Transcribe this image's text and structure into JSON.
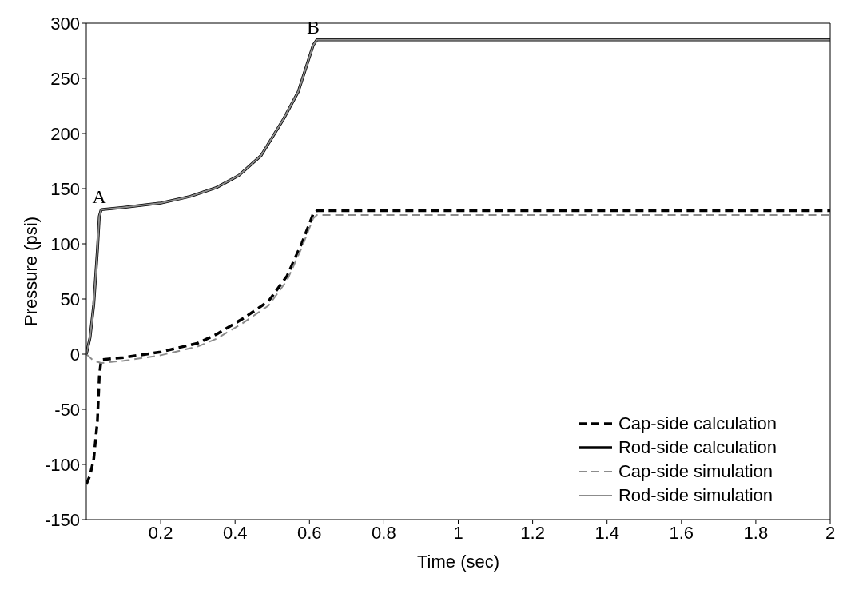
{
  "chart_data": {
    "type": "line",
    "xlabel": "Time (sec)",
    "ylabel": "Pressure (psi)",
    "xlim": [
      0,
      2
    ],
    "xticks": [
      0.2,
      0.4,
      0.6,
      0.8,
      1,
      1.2,
      1.4,
      1.6,
      1.8,
      2
    ],
    "ylim": [
      -150,
      300
    ],
    "yticks": [
      -150,
      -100,
      -50,
      0,
      50,
      100,
      150,
      200,
      250,
      300
    ],
    "grid": false,
    "legend": "bottom right",
    "marker": "none",
    "annotations": [
      {
        "text": "A",
        "x": 0.035,
        "y": 131
      },
      {
        "text": "B",
        "x": 0.61,
        "y": 285
      }
    ],
    "series": [
      {
        "name": "Cap-side calculation",
        "color": "#000000",
        "line_style": "dashed",
        "x": [
          0,
          0.01,
          0.02,
          0.03,
          0.035,
          0.04,
          0.1,
          0.2,
          0.3,
          0.35,
          0.42,
          0.49,
          0.54,
          0.58,
          0.61,
          0.62,
          2
        ],
        "values": [
          -118,
          -110,
          -95,
          -60,
          -20,
          -5,
          -3,
          2,
          10,
          18,
          32,
          48,
          71,
          101,
          127,
          130,
          130
        ]
      },
      {
        "name": "Rod-side calculation",
        "color": "#000000",
        "line_style": "solid",
        "x": [
          0,
          0.01,
          0.02,
          0.03,
          0.035,
          0.04,
          0.1,
          0.2,
          0.28,
          0.35,
          0.41,
          0.47,
          0.53,
          0.57,
          0.61,
          0.62,
          2
        ],
        "values": [
          0,
          15,
          45,
          95,
          125,
          131,
          133,
          137,
          143,
          151,
          162,
          180,
          213,
          238,
          280,
          285,
          285
        ]
      },
      {
        "name": "Cap-side simulation",
        "color": "#8c8c8c",
        "line_style": "dashed",
        "x": [
          0,
          0.02,
          0.04,
          0.1,
          0.2,
          0.3,
          0.35,
          0.42,
          0.49,
          0.54,
          0.58,
          0.61,
          0.62,
          2
        ],
        "values": [
          0,
          -6,
          -8,
          -6,
          -1,
          7,
          14,
          28,
          44,
          67,
          97,
          123,
          126,
          126
        ]
      },
      {
        "name": "Rod-side simulation",
        "color": "#8c8c8c",
        "line_style": "solid",
        "x": [
          0,
          0.01,
          0.02,
          0.03,
          0.035,
          0.04,
          0.1,
          0.2,
          0.28,
          0.35,
          0.41,
          0.47,
          0.53,
          0.57,
          0.61,
          0.62,
          2
        ],
        "values": [
          0,
          15,
          45,
          95,
          125,
          131,
          133,
          137,
          143,
          151,
          162,
          180,
          213,
          238,
          280,
          285,
          285
        ]
      }
    ]
  }
}
